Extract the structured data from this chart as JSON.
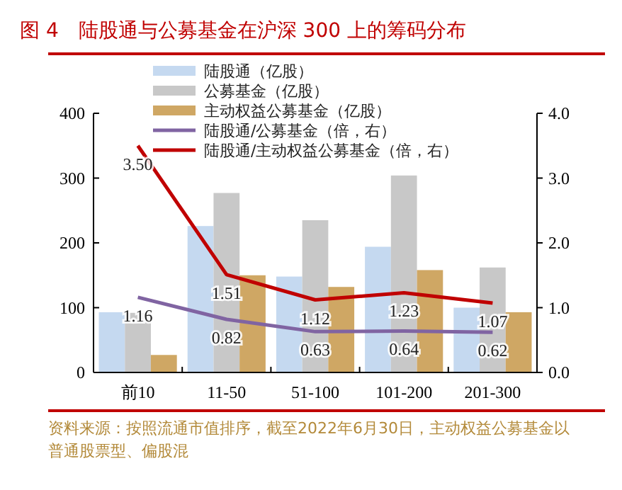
{
  "chart_data": {
    "type": "bar",
    "title": "图 4　陆股通与公募基金在沪深 300 上的筹码分布",
    "categories": [
      "前10",
      "11-50",
      "51-100",
      "101-200",
      "201-300"
    ],
    "series": [
      {
        "name": "陆股通（亿股）",
        "color": "#c5d9f0",
        "values": [
          93,
          226,
          148,
          194,
          100
        ]
      },
      {
        "name": "公募基金（亿股）",
        "color": "#c8c8c8",
        "values": [
          92,
          277,
          235,
          304,
          162
        ]
      },
      {
        "name": "主动权益公募基金（亿股）",
        "color": "#cfa764",
        "values": [
          27,
          150,
          132,
          158,
          93
        ]
      },
      {
        "name": "陆股通/公募基金（倍，右）",
        "type": "line",
        "axis": "y2",
        "color": "#8064a2",
        "values": [
          1.16,
          0.82,
          0.63,
          0.64,
          0.62
        ],
        "value_labels": [
          "1.16",
          "0.82",
          "0.63",
          "0.64",
          "0.62"
        ]
      },
      {
        "name": "陆股通/主动权益公募基金（倍，右）",
        "type": "line",
        "axis": "y2",
        "color": "#c00000",
        "values": [
          3.5,
          1.51,
          1.12,
          1.23,
          1.07
        ],
        "value_labels": [
          "3.50",
          "1.51",
          "1.12",
          "1.23",
          "1.07"
        ]
      }
    ],
    "ylim": [
      0,
      400
    ],
    "yticks": [
      0,
      100,
      200,
      300,
      400
    ],
    "y2lim": [
      0,
      4
    ],
    "y2ticks": [
      {
        "value": 0,
        "label": "0.0"
      },
      {
        "value": 1,
        "label": "1.0"
      },
      {
        "value": 2,
        "label": "2.0"
      },
      {
        "value": 3,
        "label": "3.0"
      },
      {
        "value": 4,
        "label": "4.0"
      }
    ],
    "legend": "top",
    "grid": false,
    "marker": "none",
    "annotations": [
      "资料来源：按照流通市值排序，截至2022年6月30日，主动权益公募基金以普通股票型、偏股混"
    ]
  }
}
